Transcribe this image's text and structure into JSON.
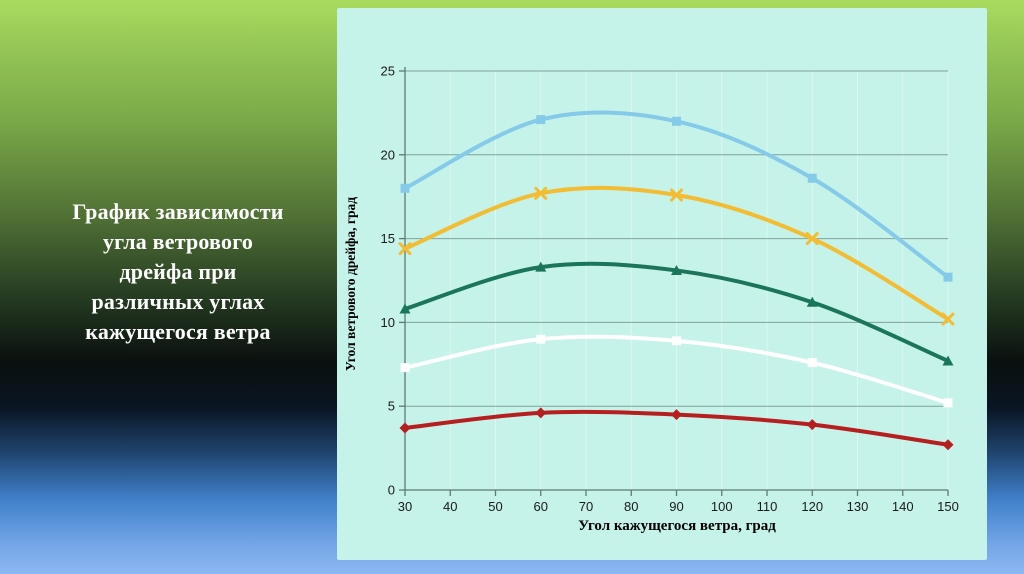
{
  "slide": {
    "title_lines": [
      "График зависимости",
      "угла ветрового",
      "дрейфа при",
      "различных углах",
      "кажущегося ветра"
    ]
  },
  "chart_data": {
    "type": "line",
    "title": "",
    "xlabel": "Угол кажущегося ветра, град",
    "ylabel": "Угол ветрового дрейфа, град",
    "x": [
      30,
      60,
      90,
      120,
      150
    ],
    "x_ticks": [
      30,
      40,
      50,
      60,
      70,
      80,
      90,
      100,
      110,
      120,
      130,
      140,
      150
    ],
    "y_ticks": [
      0,
      5,
      10,
      15,
      20,
      25
    ],
    "xlim": [
      30,
      150
    ],
    "ylim": [
      0,
      25
    ],
    "grid": true,
    "legend_position": "none",
    "curve_style": "smooth",
    "series": [
      {
        "name": "light-blue",
        "color": "#85cae8",
        "marker": "square",
        "values": [
          18.0,
          22.1,
          22.0,
          18.6,
          12.7
        ]
      },
      {
        "name": "yellow",
        "color": "#f2bc33",
        "marker": "x",
        "values": [
          14.4,
          17.7,
          17.6,
          15.0,
          10.2
        ]
      },
      {
        "name": "green",
        "color": "#1b755a",
        "marker": "triangle",
        "values": [
          10.8,
          13.3,
          13.1,
          11.2,
          7.7
        ]
      },
      {
        "name": "white",
        "color": "#ffffff",
        "marker": "square",
        "values": [
          7.3,
          9.0,
          8.9,
          7.6,
          5.2
        ]
      },
      {
        "name": "dark-red",
        "color": "#b51f1f",
        "marker": "diamond",
        "values": [
          3.7,
          4.6,
          4.5,
          3.9,
          2.7
        ]
      }
    ],
    "style": {
      "panel_bg": "#c5f2e9",
      "h_gridline_color": "#7fa39b",
      "v_gridline_color": "#dcf8f0",
      "axis_color": "#5f7a73"
    }
  }
}
